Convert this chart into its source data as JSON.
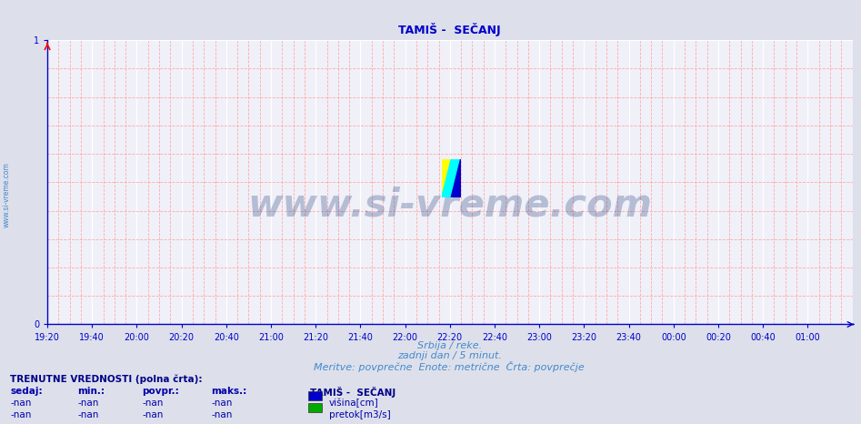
{
  "title": "TAMIŠ -  SEČANJ",
  "title_color": "#0000cc",
  "title_fontsize": 9,
  "bg_color": "#dde0ea",
  "plot_bg_color": "#f0f0f8",
  "grid_major_color": "#ffffff",
  "grid_minor_color": "#ffaaaa",
  "axis_color": "#0000cc",
  "tick_color": "#0000cc",
  "tick_fontsize": 7,
  "xlim": [
    0,
    288
  ],
  "ylim": [
    0,
    1
  ],
  "yticks": [
    0,
    1
  ],
  "xtick_labels": [
    "19:20",
    "19:40",
    "20:00",
    "20:20",
    "20:40",
    "21:00",
    "21:20",
    "21:40",
    "22:00",
    "22:20",
    "22:40",
    "23:00",
    "23:20",
    "23:40",
    "00:00",
    "00:20",
    "00:40",
    "01:00"
  ],
  "xtick_positions": [
    0,
    16,
    32,
    48,
    64,
    80,
    96,
    112,
    128,
    144,
    160,
    176,
    192,
    208,
    224,
    240,
    256,
    272
  ],
  "xlabel_line1": "Srbija / reke.",
  "xlabel_line2": "zadnji dan / 5 minut.",
  "xlabel_line3": "Meritve: povprečne  Enote: metrične  Črta: povprečje",
  "xlabel_color": "#4488cc",
  "xlabel_fontsize": 8,
  "watermark_text": "www.si-vreme.com",
  "watermark_color": "#1a3a7a",
  "watermark_alpha": 0.28,
  "watermark_fontsize": 30,
  "sidebar_text": "www.si-vreme.com",
  "sidebar_color": "#4488cc",
  "sidebar_fontsize": 5.5,
  "legend_title": "TAMIŠ -  SEČANJ",
  "legend_color": "#000088",
  "legend_fontsize": 7.5,
  "legend_entries": [
    "višina[cm]",
    "pretok[m3/s]"
  ],
  "legend_colors": [
    "#0000cc",
    "#00aa00"
  ],
  "table_header": [
    "sedaj:",
    "min.:",
    "povpr.:",
    "maks.:"
  ],
  "table_rows": [
    [
      "-nan",
      "-nan",
      "-nan",
      "-nan"
    ],
    [
      "-nan",
      "-nan",
      "-nan",
      "-nan"
    ]
  ],
  "table_color": "#0000aa",
  "table_fontsize": 7.5,
  "table_header_fontsize": 7.5,
  "currently_label": "TRENUTNE VREDNOSTI (polna črta):",
  "currently_color": "#000088",
  "currently_fontsize": 7.5,
  "logo_yellow": "#ffff00",
  "logo_cyan": "#00ffff",
  "logo_blue": "#0000cc"
}
